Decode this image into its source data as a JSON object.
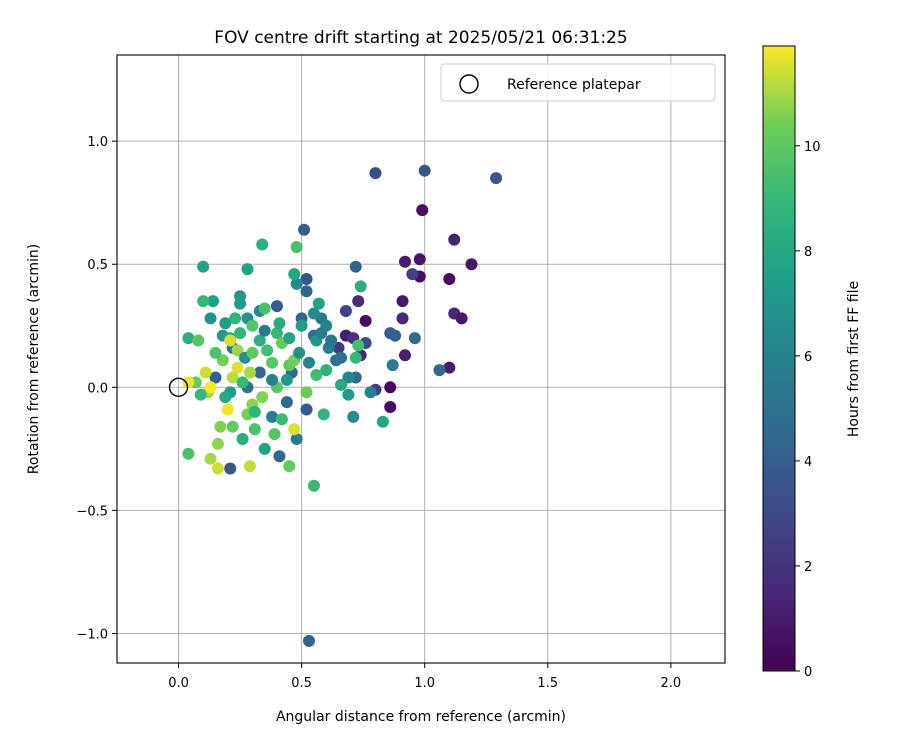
{
  "chart_data": {
    "type": "scatter",
    "title": "FOV centre drift starting at 2025/05/21 06:31:25",
    "xlabel": "Angular distance from reference (arcmin)",
    "ylabel": "Rotation from reference (arcmin)",
    "xlim": [
      -0.25,
      2.22
    ],
    "ylim": [
      -1.12,
      1.35
    ],
    "xticks": [
      0.0,
      0.5,
      1.0,
      1.5,
      2.0
    ],
    "xtick_labels": [
      "0.0",
      "0.5",
      "1.0",
      "1.5",
      "2.0"
    ],
    "yticks": [
      -1.0,
      -0.5,
      0.0,
      0.5,
      1.0
    ],
    "ytick_labels": [
      "−1.0",
      "−0.5",
      "0.0",
      "0.5",
      "1.0"
    ],
    "grid": true,
    "legend": {
      "placement": "top-right",
      "entries": [
        "Reference platepar"
      ]
    },
    "reference": {
      "x": 0.0,
      "y": 0.0
    },
    "colorbar": {
      "label": "Hours from first FF file",
      "colormap": "viridis",
      "range": [
        0,
        11.9
      ],
      "ticks": [
        0,
        2,
        4,
        6,
        8,
        10
      ],
      "tick_labels": [
        "0",
        "2",
        "4",
        "6",
        "8",
        "10"
      ]
    },
    "points": [
      {
        "x": 0.99,
        "y": 0.72,
        "h": 0.6
      },
      {
        "x": 0.92,
        "y": 0.51,
        "h": 1.0
      },
      {
        "x": 0.98,
        "y": 0.52,
        "h": 0.7
      },
      {
        "x": 0.98,
        "y": 0.45,
        "h": 0.5
      },
      {
        "x": 1.1,
        "y": 0.44,
        "h": 0.4
      },
      {
        "x": 1.19,
        "y": 0.5,
        "h": 0.8
      },
      {
        "x": 1.12,
        "y": 0.6,
        "h": 1.3
      },
      {
        "x": 1.12,
        "y": 0.3,
        "h": 1.4
      },
      {
        "x": 1.15,
        "y": 0.28,
        "h": 0.9
      },
      {
        "x": 1.1,
        "y": 0.08,
        "h": 1.0
      },
      {
        "x": 0.91,
        "y": 0.35,
        "h": 0.9
      },
      {
        "x": 0.91,
        "y": 0.28,
        "h": 1.5
      },
      {
        "x": 0.92,
        "y": 0.13,
        "h": 1.2
      },
      {
        "x": 0.86,
        "y": 0.0,
        "h": 0.4
      },
      {
        "x": 0.86,
        "y": -0.08,
        "h": 0.5
      },
      {
        "x": 0.76,
        "y": 0.27,
        "h": 0.4
      },
      {
        "x": 0.73,
        "y": 0.35,
        "h": 1.7
      },
      {
        "x": 0.74,
        "y": 0.13,
        "h": 1.5
      },
      {
        "x": 0.68,
        "y": 0.21,
        "h": 1.0
      },
      {
        "x": 0.71,
        "y": 0.2,
        "h": 1.9
      },
      {
        "x": 0.68,
        "y": 0.31,
        "h": 2.6
      },
      {
        "x": 0.8,
        "y": -0.01,
        "h": 2.5
      },
      {
        "x": 0.76,
        "y": 0.18,
        "h": 3.1
      },
      {
        "x": 0.65,
        "y": 0.16,
        "h": 2.3
      },
      {
        "x": 0.95,
        "y": 0.46,
        "h": 2.6
      },
      {
        "x": 1.0,
        "y": 0.88,
        "h": 3.5
      },
      {
        "x": 0.8,
        "y": 0.87,
        "h": 3.2
      },
      {
        "x": 1.29,
        "y": 0.85,
        "h": 3.6
      },
      {
        "x": 0.51,
        "y": 0.64,
        "h": 3.9
      },
      {
        "x": 0.72,
        "y": 0.49,
        "h": 4.3
      },
      {
        "x": 0.52,
        "y": 0.44,
        "h": 3.6
      },
      {
        "x": 0.53,
        "y": -1.03,
        "h": 4.2
      },
      {
        "x": 1.06,
        "y": 0.07,
        "h": 4.5
      },
      {
        "x": 0.96,
        "y": 0.2,
        "h": 4.6
      },
      {
        "x": 0.86,
        "y": 0.22,
        "h": 4.0
      },
      {
        "x": 0.88,
        "y": 0.21,
        "h": 4.3
      },
      {
        "x": 0.72,
        "y": 0.04,
        "h": 4.7
      },
      {
        "x": 0.64,
        "y": 0.11,
        "h": 5.0
      },
      {
        "x": 0.52,
        "y": 0.39,
        "h": 4.3
      },
      {
        "x": 0.4,
        "y": 0.33,
        "h": 4.0
      },
      {
        "x": 0.5,
        "y": 0.28,
        "h": 4.5
      },
      {
        "x": 0.58,
        "y": 0.28,
        "h": 5.4
      },
      {
        "x": 0.55,
        "y": 0.21,
        "h": 4.8
      },
      {
        "x": 0.61,
        "y": 0.16,
        "h": 5.6
      },
      {
        "x": 0.46,
        "y": 0.06,
        "h": 4.5
      },
      {
        "x": 0.44,
        "y": -0.06,
        "h": 4.6
      },
      {
        "x": 0.52,
        "y": -0.09,
        "h": 3.8
      },
      {
        "x": 0.41,
        "y": -0.28,
        "h": 4.4
      },
      {
        "x": 0.48,
        "y": -0.21,
        "h": 5.3
      },
      {
        "x": 0.21,
        "y": -0.33,
        "h": 3.7
      },
      {
        "x": 0.15,
        "y": 0.04,
        "h": 4.1
      },
      {
        "x": 0.22,
        "y": 0.16,
        "h": 4.8
      },
      {
        "x": 0.33,
        "y": 0.06,
        "h": 4.5
      },
      {
        "x": 0.28,
        "y": 0.0,
        "h": 5.1
      },
      {
        "x": 0.38,
        "y": -0.12,
        "h": 5.8
      },
      {
        "x": 0.87,
        "y": 0.09,
        "h": 5.5
      },
      {
        "x": 0.78,
        "y": -0.02,
        "h": 5.9
      },
      {
        "x": 0.71,
        "y": -0.12,
        "h": 6.5
      },
      {
        "x": 0.69,
        "y": 0.04,
        "h": 6.2
      },
      {
        "x": 0.6,
        "y": 0.25,
        "h": 6.0
      },
      {
        "x": 0.48,
        "y": 0.42,
        "h": 6.4
      },
      {
        "x": 0.33,
        "y": 0.31,
        "h": 6.3
      },
      {
        "x": 0.28,
        "y": 0.28,
        "h": 6.8
      },
      {
        "x": 0.25,
        "y": 0.37,
        "h": 7.0
      },
      {
        "x": 0.25,
        "y": 0.34,
        "h": 7.3
      },
      {
        "x": 0.13,
        "y": 0.28,
        "h": 6.9
      },
      {
        "x": 0.14,
        "y": 0.35,
        "h": 7.5
      },
      {
        "x": 0.1,
        "y": 0.49,
        "h": 7.6
      },
      {
        "x": 0.28,
        "y": 0.48,
        "h": 7.7
      },
      {
        "x": 0.47,
        "y": 0.46,
        "h": 7.9
      },
      {
        "x": 0.57,
        "y": 0.34,
        "h": 7.7
      },
      {
        "x": 0.56,
        "y": 0.19,
        "h": 7.0
      },
      {
        "x": 0.69,
        "y": -0.03,
        "h": 7.3
      },
      {
        "x": 0.83,
        "y": -0.14,
        "h": 7.9
      },
      {
        "x": 0.74,
        "y": 0.41,
        "h": 8.3
      },
      {
        "x": 0.66,
        "y": 0.01,
        "h": 8.0
      },
      {
        "x": 0.59,
        "y": -0.11,
        "h": 8.7
      },
      {
        "x": 0.55,
        "y": -0.4,
        "h": 9.0
      },
      {
        "x": 0.35,
        "y": -0.25,
        "h": 7.7
      },
      {
        "x": 0.26,
        "y": -0.21,
        "h": 8.3
      },
      {
        "x": 0.21,
        "y": -0.02,
        "h": 7.4
      },
      {
        "x": 0.19,
        "y": -0.04,
        "h": 8.1
      },
      {
        "x": 0.18,
        "y": 0.21,
        "h": 7.2
      },
      {
        "x": 0.21,
        "y": 0.2,
        "h": 8.1
      },
      {
        "x": 0.25,
        "y": 0.22,
        "h": 8.8
      },
      {
        "x": 0.04,
        "y": 0.2,
        "h": 8.4
      },
      {
        "x": 0.1,
        "y": 0.35,
        "h": 8.9
      },
      {
        "x": 0.34,
        "y": 0.58,
        "h": 8.5
      },
      {
        "x": 0.48,
        "y": 0.57,
        "h": 9.4
      },
      {
        "x": 0.73,
        "y": 0.17,
        "h": 9.3
      },
      {
        "x": 0.72,
        "y": 0.12,
        "h": 9.0
      },
      {
        "x": 0.6,
        "y": 0.07,
        "h": 8.6
      },
      {
        "x": 0.56,
        "y": 0.05,
        "h": 9.2
      },
      {
        "x": 0.4,
        "y": 0.22,
        "h": 8.9
      },
      {
        "x": 0.35,
        "y": 0.32,
        "h": 9.5
      },
      {
        "x": 0.3,
        "y": 0.25,
        "h": 9.7
      },
      {
        "x": 0.38,
        "y": 0.1,
        "h": 9.9
      },
      {
        "x": 0.45,
        "y": 0.09,
        "h": 10.1
      },
      {
        "x": 0.47,
        "y": 0.11,
        "h": 10.4
      },
      {
        "x": 0.39,
        "y": -0.19,
        "h": 9.8
      },
      {
        "x": 0.45,
        "y": -0.32,
        "h": 10.1
      },
      {
        "x": 0.31,
        "y": -0.17,
        "h": 9.6
      },
      {
        "x": 0.22,
        "y": -0.16,
        "h": 10.0
      },
      {
        "x": 0.17,
        "y": -0.16,
        "h": 10.6
      },
      {
        "x": 0.04,
        "y": -0.27,
        "h": 9.5
      },
      {
        "x": 0.08,
        "y": 0.19,
        "h": 9.8
      },
      {
        "x": 0.07,
        "y": 0.02,
        "h": 10.2
      },
      {
        "x": 0.12,
        "y": -0.02,
        "h": 11.0
      },
      {
        "x": 0.16,
        "y": -0.23,
        "h": 10.8
      },
      {
        "x": 0.16,
        "y": -0.33,
        "h": 11.4
      },
      {
        "x": 0.13,
        "y": -0.29,
        "h": 11.0
      },
      {
        "x": 0.29,
        "y": -0.32,
        "h": 11.3
      },
      {
        "x": 0.3,
        "y": -0.07,
        "h": 10.7
      },
      {
        "x": 0.24,
        "y": 0.15,
        "h": 10.9
      },
      {
        "x": 0.21,
        "y": 0.19,
        "h": 11.5
      },
      {
        "x": 0.24,
        "y": 0.08,
        "h": 11.6
      },
      {
        "x": 0.22,
        "y": 0.04,
        "h": 11.2
      },
      {
        "x": 0.2,
        "y": -0.09,
        "h": 11.8
      },
      {
        "x": 0.29,
        "y": 0.06,
        "h": 11.0
      },
      {
        "x": 0.04,
        "y": 0.02,
        "h": 11.7
      },
      {
        "x": 0.11,
        "y": 0.06,
        "h": 11.4
      },
      {
        "x": 0.13,
        "y": 0.0,
        "h": 11.9
      },
      {
        "x": 0.47,
        "y": -0.17,
        "h": 11.5
      },
      {
        "x": 0.52,
        "y": -0.02,
        "h": 10.3
      },
      {
        "x": 0.28,
        "y": -0.11,
        "h": 10.5
      },
      {
        "x": 0.18,
        "y": 0.11,
        "h": 10.4
      },
      {
        "x": 0.42,
        "y": 0.18,
        "h": 10.2
      },
      {
        "x": 0.4,
        "y": 0.0,
        "h": 9.9
      },
      {
        "x": 0.36,
        "y": 0.15,
        "h": 9.3
      },
      {
        "x": 0.26,
        "y": 0.02,
        "h": 9.0
      },
      {
        "x": 0.33,
        "y": 0.19,
        "h": 8.4
      },
      {
        "x": 0.31,
        "y": -0.1,
        "h": 8.6
      },
      {
        "x": 0.41,
        "y": 0.26,
        "h": 8.2
      },
      {
        "x": 0.45,
        "y": 0.2,
        "h": 7.8
      },
      {
        "x": 0.5,
        "y": 0.25,
        "h": 7.4
      },
      {
        "x": 0.44,
        "y": 0.03,
        "h": 7.1
      },
      {
        "x": 0.49,
        "y": 0.14,
        "h": 6.7
      },
      {
        "x": 0.53,
        "y": 0.1,
        "h": 6.1
      },
      {
        "x": 0.58,
        "y": 0.22,
        "h": 5.7
      },
      {
        "x": 0.55,
        "y": 0.3,
        "h": 6.5
      },
      {
        "x": 0.62,
        "y": 0.19,
        "h": 5.2
      },
      {
        "x": 0.66,
        "y": 0.12,
        "h": 4.9
      },
      {
        "x": 0.35,
        "y": 0.23,
        "h": 5.5
      },
      {
        "x": 0.38,
        "y": 0.03,
        "h": 6.0
      },
      {
        "x": 0.27,
        "y": 0.12,
        "h": 6.6
      },
      {
        "x": 0.19,
        "y": 0.26,
        "h": 7.4
      },
      {
        "x": 0.23,
        "y": 0.28,
        "h": 8.7
      },
      {
        "x": 0.15,
        "y": 0.14,
        "h": 9.6
      },
      {
        "x": 0.09,
        "y": -0.03,
        "h": 8.9
      },
      {
        "x": 0.34,
        "y": -0.04,
        "h": 10.6
      },
      {
        "x": 0.42,
        "y": -0.13,
        "h": 9.1
      },
      {
        "x": 0.3,
        "y": 0.14,
        "h": 10.0
      }
    ]
  }
}
